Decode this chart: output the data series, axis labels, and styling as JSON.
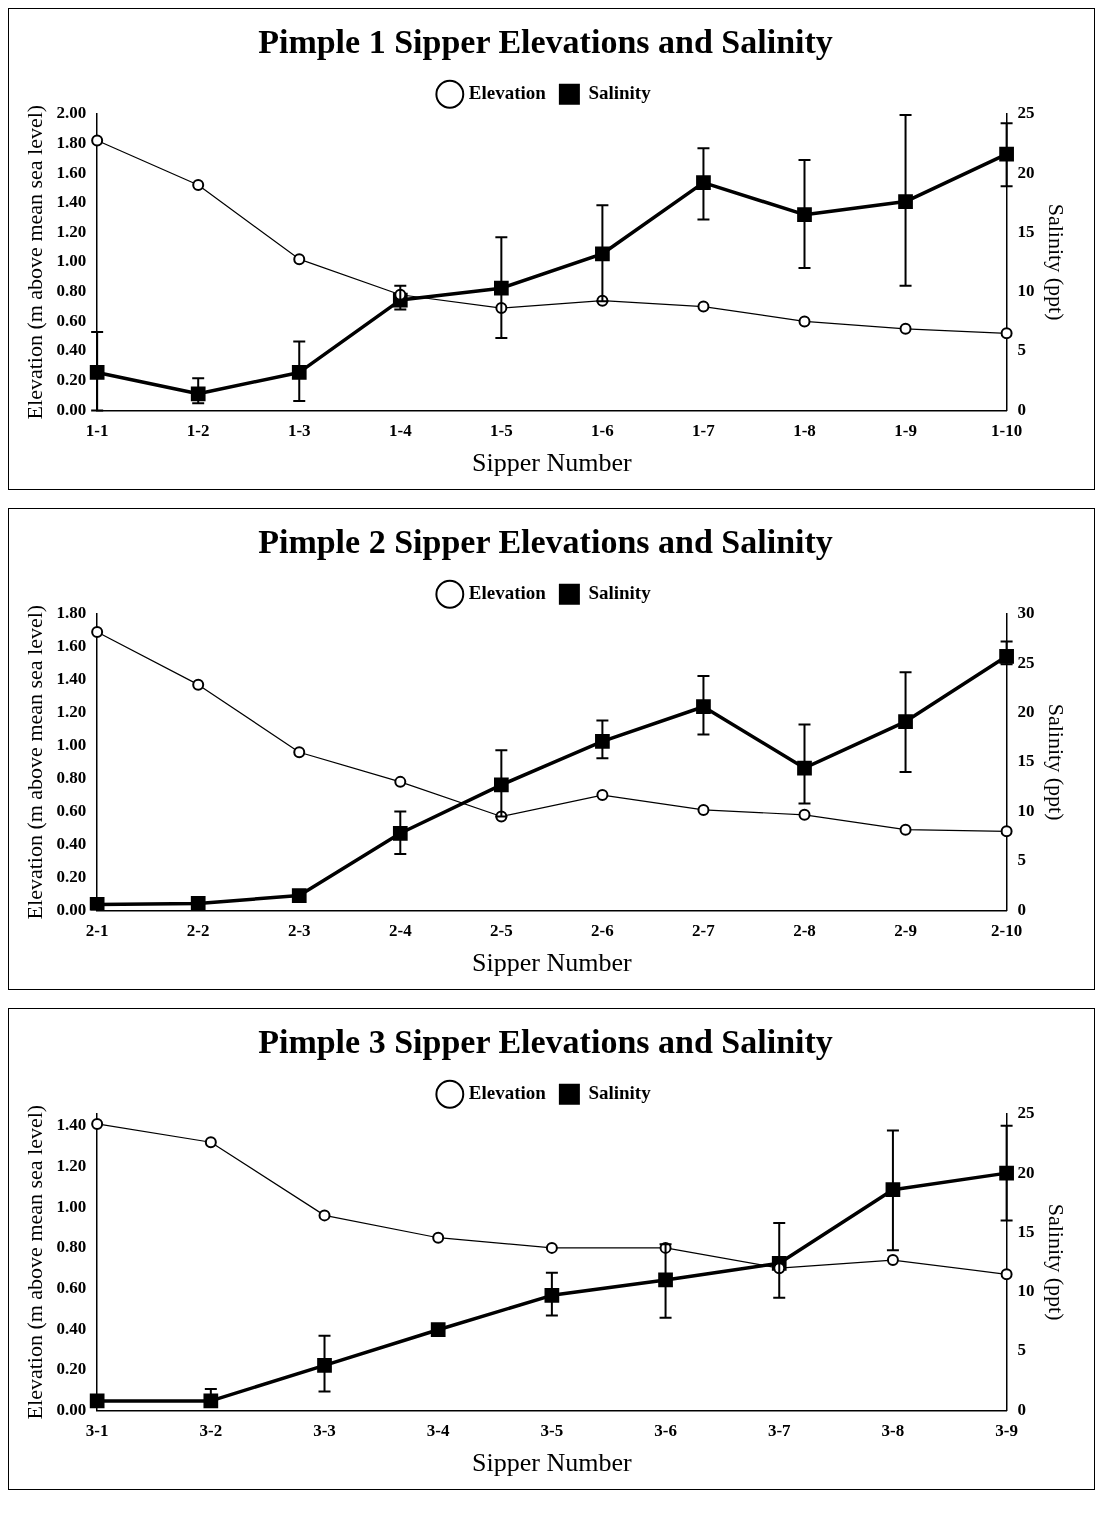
{
  "chart_data": [
    {
      "type": "line",
      "title": "Pimple 1 Sipper Elevations and Salinity",
      "xlabel": "Sipper Number",
      "ylabel": "Elevation (m above mean sea level)",
      "y2label": "Salinity (ppt)",
      "categories": [
        "1-1",
        "1-2",
        "1-3",
        "1-4",
        "1-5",
        "1-6",
        "1-7",
        "1-8",
        "1-9",
        "1-10"
      ],
      "ylim": [
        0,
        2
      ],
      "yticks": [
        {
          "value": 0,
          "label": "0.00"
        },
        {
          "value": 0.2,
          "label": "0.20"
        },
        {
          "value": 0.4,
          "label": "0.40"
        },
        {
          "value": 0.6,
          "label": "0.60"
        },
        {
          "value": 0.8,
          "label": "0.80"
        },
        {
          "value": 1,
          "label": "1.00"
        },
        {
          "value": 1.2,
          "label": "1.20"
        },
        {
          "value": 1.4,
          "label": "1.40"
        },
        {
          "value": 1.6,
          "label": "1.60"
        },
        {
          "value": 1.8,
          "label": "1.80"
        },
        {
          "value": 2,
          "label": "2.00"
        }
      ],
      "y2lim": [
        0,
        25
      ],
      "y2ticks": [
        0,
        5,
        10,
        15,
        20,
        25
      ],
      "grid": false,
      "legend": "top",
      "series": [
        {
          "name": "Elevation",
          "color": "#000000",
          "marker": "circle",
          "values": [
            1.82,
            1.52,
            1.02,
            0.78,
            0.69,
            0.74,
            0.7,
            0.6,
            0.55,
            0.52
          ]
        },
        {
          "name": "Salinity",
          "color": "#000000",
          "marker": "square",
          "axis": "y2",
          "values": [
            3.2,
            1.4,
            3.2,
            9.3,
            10.3,
            13.2,
            19.2,
            16.5,
            17.6,
            21.6
          ],
          "errors": [
            [
              0,
              6.6
            ],
            [
              0.6,
              2.7
            ],
            [
              0.8,
              5.8
            ],
            [
              8.5,
              10.5
            ],
            [
              6.1,
              14.6
            ],
            [
              9.2,
              17.3
            ],
            [
              16.1,
              22.1
            ],
            [
              12.0,
              21.1
            ],
            [
              10.5,
              24.9
            ],
            [
              18.9,
              24.2
            ]
          ]
        }
      ]
    },
    {
      "type": "line",
      "title": "Pimple 2 Sipper Elevations and Salinity",
      "xlabel": "Sipper Number",
      "ylabel": "Elevation (m above mean sea level)",
      "y2label": "Salinity (ppt)",
      "categories": [
        "2-1",
        "2-2",
        "2-3",
        "2-4",
        "2-5",
        "2-6",
        "2-7",
        "2-8",
        "2-9",
        "2-10"
      ],
      "ylim": [
        0,
        1.8
      ],
      "yticks": [
        {
          "value": 0,
          "label": "0.00"
        },
        {
          "value": 0.2,
          "label": "0.20"
        },
        {
          "value": 0.4,
          "label": "0.40"
        },
        {
          "value": 0.6,
          "label": "0.60"
        },
        {
          "value": 0.8,
          "label": "0.80"
        },
        {
          "value": 1,
          "label": "1.00"
        },
        {
          "value": 1.2,
          "label": "1.20"
        },
        {
          "value": 1.4,
          "label": "1.40"
        },
        {
          "value": 1.6,
          "label": "1.60"
        },
        {
          "value": 1.8,
          "label": "1.80"
        }
      ],
      "y2lim": [
        0,
        30
      ],
      "y2ticks": [
        0,
        5,
        10,
        15,
        20,
        25,
        30
      ],
      "grid": false,
      "legend": "top",
      "series": [
        {
          "name": "Elevation",
          "color": "#000000",
          "marker": "circle",
          "values": [
            1.69,
            1.37,
            0.96,
            0.78,
            0.57,
            0.7,
            0.61,
            0.58,
            0.49,
            0.48
          ]
        },
        {
          "name": "Salinity",
          "color": "#000000",
          "marker": "square",
          "axis": "y2",
          "values": [
            0.6,
            0.7,
            1.5,
            7.8,
            12.7,
            17.1,
            20.6,
            14.4,
            19.1,
            25.7
          ],
          "errors": [
            null,
            null,
            null,
            [
              5.7,
              10.0
            ],
            [
              9.5,
              16.2
            ],
            [
              15.4,
              19.2
            ],
            [
              17.8,
              23.7
            ],
            [
              10.8,
              18.8
            ],
            [
              14.0,
              24.1
            ],
            [
              24.9,
              27.2
            ]
          ]
        }
      ]
    },
    {
      "type": "line",
      "title": "Pimple 3 Sipper Elevations and Salinity",
      "xlabel": "Sipper Number",
      "ylabel": "Elevation (m above mean sea level)",
      "y2label": "Salinity (ppt)",
      "categories": [
        "3-1",
        "3-2",
        "3-3",
        "3-4",
        "3-5",
        "3-6",
        "3-7",
        "3-8",
        "3-9"
      ],
      "ylim": [
        0,
        1.46
      ],
      "yticks": [
        {
          "value": 0,
          "label": "0.00"
        },
        {
          "value": 0.2,
          "label": "0.20"
        },
        {
          "value": 0.4,
          "label": "0.40"
        },
        {
          "value": 0.6,
          "label": "0.60"
        },
        {
          "value": 0.8,
          "label": "0.80"
        },
        {
          "value": 1,
          "label": "1.00"
        },
        {
          "value": 1.2,
          "label": "1.20"
        },
        {
          "value": 1.4,
          "label": "1.40"
        }
      ],
      "y2lim": [
        0,
        25
      ],
      "y2ticks": [
        0,
        5,
        10,
        15,
        20,
        25
      ],
      "grid": false,
      "legend": "top",
      "series": [
        {
          "name": "Elevation",
          "color": "#000000",
          "marker": "circle",
          "values": [
            1.41,
            1.32,
            0.96,
            0.85,
            0.8,
            0.8,
            0.7,
            0.74,
            0.67
          ]
        },
        {
          "name": "Salinity",
          "color": "#000000",
          "marker": "square",
          "axis": "y2",
          "values": [
            0.8,
            0.8,
            3.8,
            6.8,
            9.7,
            11.0,
            12.4,
            18.6,
            20.0
          ],
          "errors": [
            null,
            [
              0.3,
              1.8
            ],
            [
              1.6,
              6.3
            ],
            null,
            [
              8.0,
              11.6
            ],
            [
              7.8,
              14.0
            ],
            [
              9.5,
              15.8
            ],
            [
              13.5,
              23.6
            ],
            [
              16.0,
              24.0
            ]
          ]
        }
      ]
    }
  ]
}
